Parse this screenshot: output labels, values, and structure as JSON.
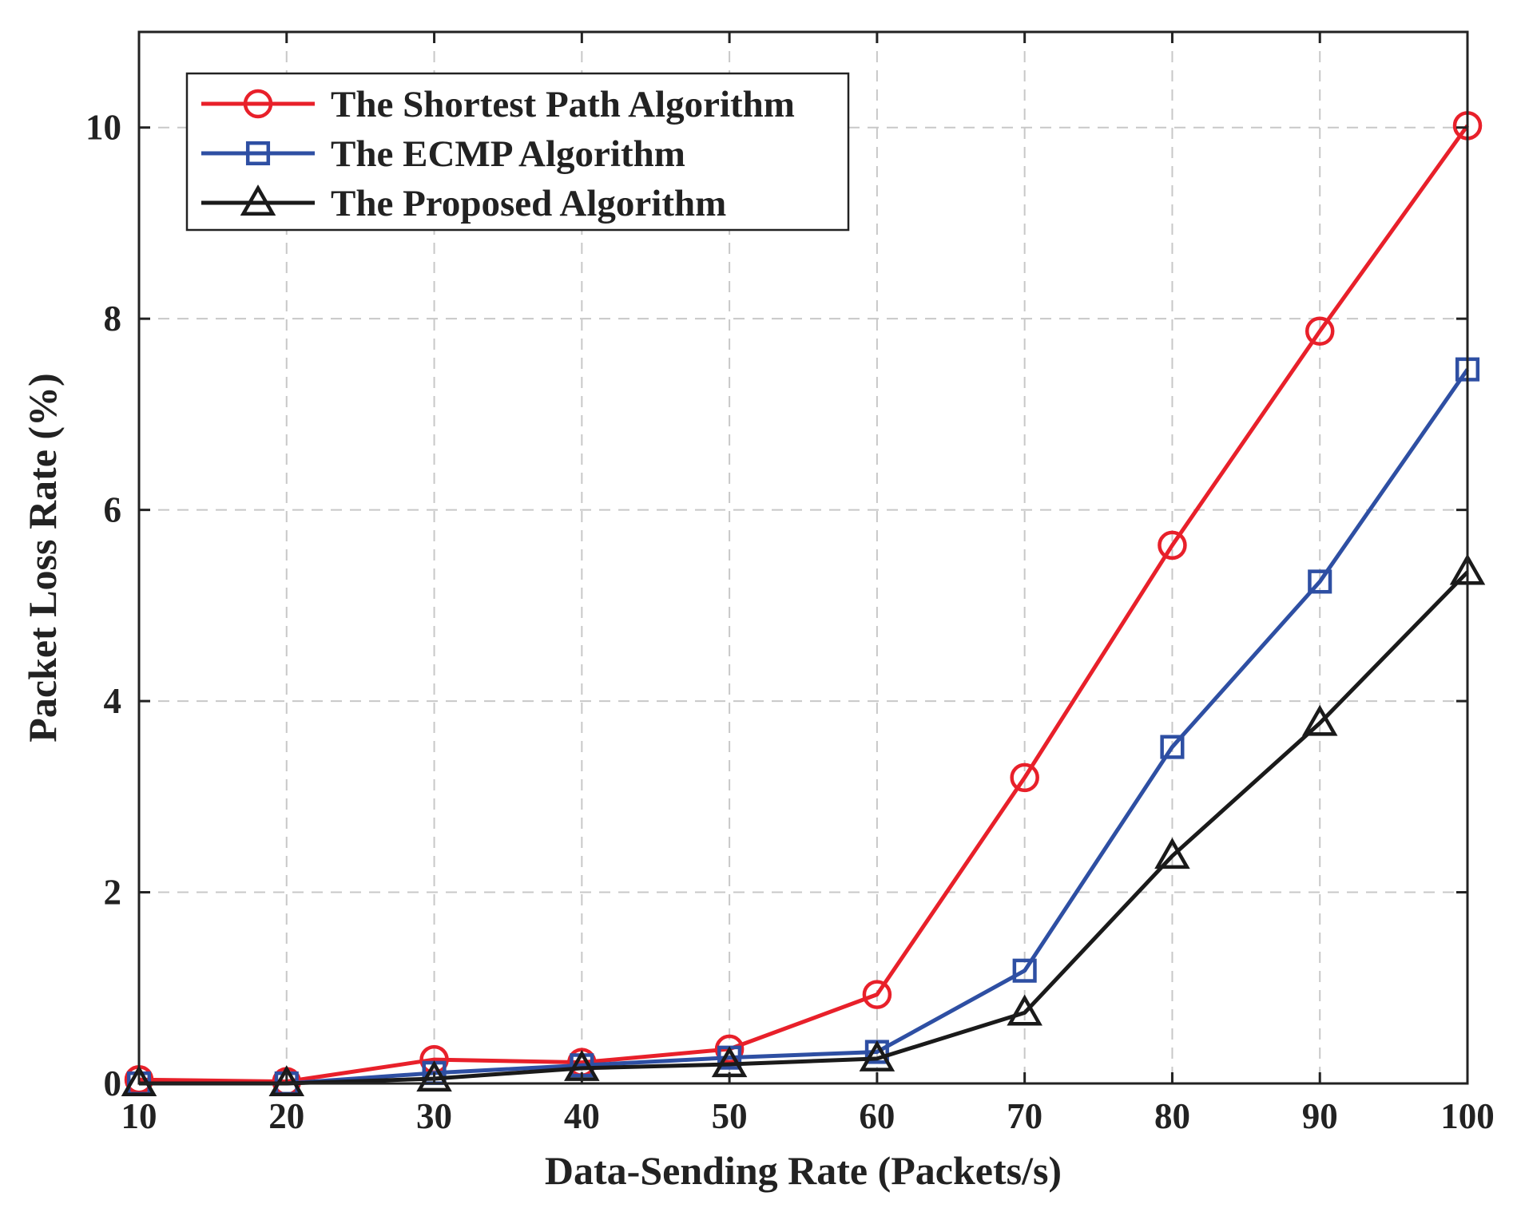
{
  "chart_data": {
    "type": "line",
    "title": "",
    "xlabel": "Data-Sending Rate (Packets/s)",
    "ylabel": "Packet Loss Rate (%)",
    "x": [
      10,
      20,
      30,
      40,
      50,
      60,
      70,
      80,
      90,
      100
    ],
    "xlim": [
      10,
      100
    ],
    "ylim": [
      0,
      11
    ],
    "xticks": [
      "10",
      "20",
      "30",
      "40",
      "50",
      "60",
      "70",
      "80",
      "90",
      "100"
    ],
    "yticks": [
      "0",
      "2",
      "4",
      "6",
      "8",
      "10"
    ],
    "ytick_values": [
      0,
      2,
      4,
      6,
      8,
      10
    ],
    "grid": true,
    "legend_position": "top-left",
    "series": [
      {
        "name": "The Shortest Path Algorithm",
        "color": "#e8202a",
        "marker": "circle",
        "values": [
          0.04,
          0.02,
          0.25,
          0.22,
          0.36,
          0.93,
          3.2,
          5.63,
          7.87,
          10.02
        ]
      },
      {
        "name": "The ECMP Algorithm",
        "color": "#2e4fa3",
        "marker": "square",
        "values": [
          0.0,
          0.0,
          0.11,
          0.19,
          0.27,
          0.33,
          1.18,
          3.52,
          5.25,
          7.47
        ]
      },
      {
        "name": "The Proposed Algorithm",
        "color": "#1a1a1a",
        "marker": "triangle",
        "values": [
          0.0,
          0.0,
          0.05,
          0.16,
          0.2,
          0.26,
          0.74,
          2.38,
          3.77,
          5.35
        ]
      }
    ]
  }
}
